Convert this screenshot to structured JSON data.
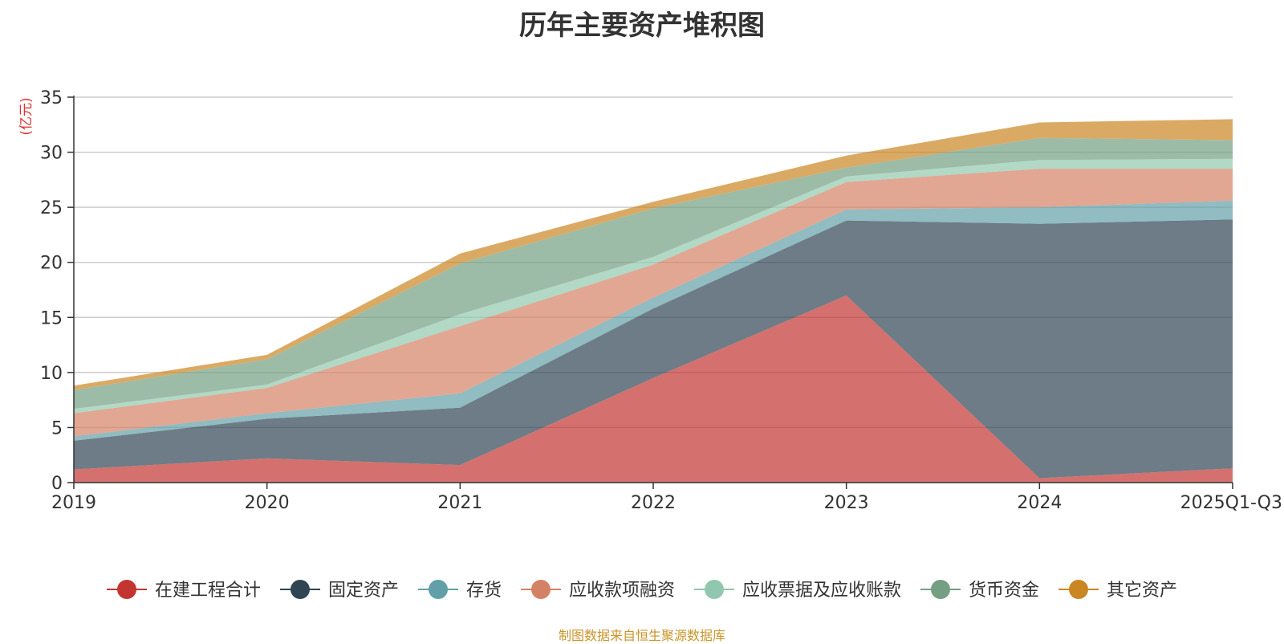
{
  "chart_data": {
    "type": "area",
    "stacked": true,
    "title": "历年主要资产堆积图",
    "unit_label": "(亿元)",
    "source_note": "制图数据来自恒生聚源数据库",
    "categories": [
      "2019",
      "2020",
      "2021",
      "2022",
      "2023",
      "2024",
      "2025Q1-Q3"
    ],
    "ylim": [
      0,
      35
    ],
    "yticks": [
      0,
      5,
      10,
      15,
      20,
      25,
      30,
      35
    ],
    "grid": true,
    "legend_position": "bottom",
    "series": [
      {
        "name": "在建工程合计",
        "color": "#c23531",
        "values": [
          1.2,
          2.2,
          1.6,
          9.5,
          17.0,
          0.4,
          1.3
        ]
      },
      {
        "name": "固定资产",
        "color": "#2f4554",
        "values": [
          2.6,
          3.6,
          5.2,
          6.3,
          6.8,
          23.1,
          22.6
        ]
      },
      {
        "name": "存货",
        "color": "#61a0a8",
        "values": [
          0.4,
          0.5,
          1.3,
          1.0,
          1.0,
          1.5,
          1.7
        ]
      },
      {
        "name": "应收款项融资",
        "color": "#d48265",
        "values": [
          2.1,
          2.3,
          6.1,
          3.0,
          2.5,
          3.5,
          2.9
        ]
      },
      {
        "name": "应收票据及应收账款",
        "color": "#91c7ae",
        "values": [
          0.4,
          0.3,
          1.1,
          0.7,
          0.5,
          0.8,
          0.9
        ]
      },
      {
        "name": "货币资金",
        "color": "#749f83",
        "values": [
          1.7,
          2.3,
          4.6,
          4.4,
          0.8,
          2.0,
          1.7
        ]
      },
      {
        "name": "其它资产",
        "color": "#ca8622",
        "values": [
          0.4,
          0.4,
          0.9,
          0.6,
          1.1,
          1.4,
          1.9
        ]
      }
    ]
  }
}
